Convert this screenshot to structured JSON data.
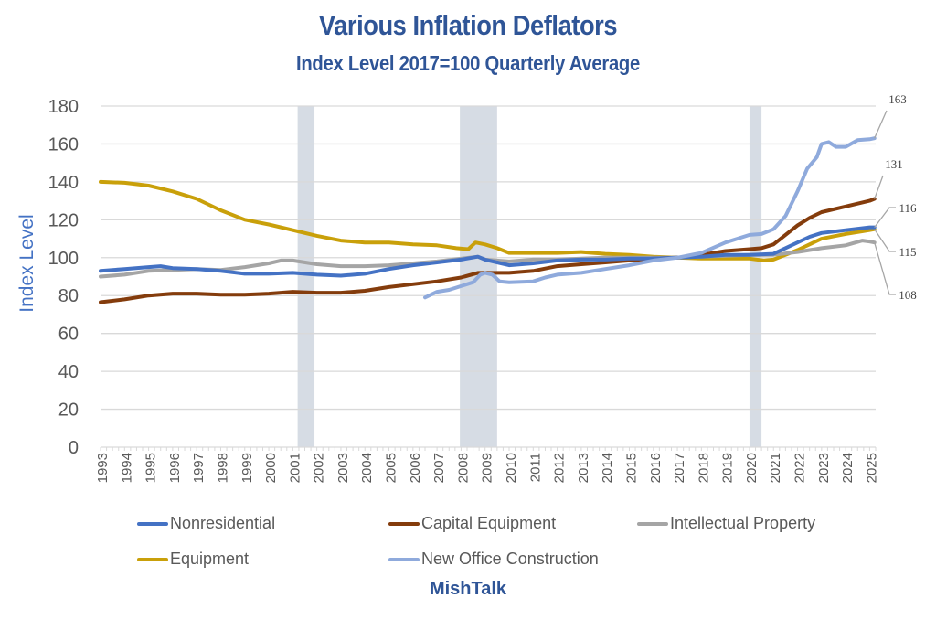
{
  "chart_data": {
    "type": "line",
    "title": "Various Inflation Deflators",
    "subtitle": "Index Level 2017=100 Quarterly Average",
    "xlabel": "",
    "ylabel": "Index Level",
    "ylim": [
      0,
      180
    ],
    "yticks": [
      "0",
      "20",
      "40",
      "60",
      "80",
      "100",
      "120",
      "140",
      "160",
      "180"
    ],
    "xlim": [
      1993,
      2025.25
    ],
    "xticks": [
      "1993",
      "1994",
      "1995",
      "1996",
      "1997",
      "1998",
      "1999",
      "2000",
      "2001",
      "2002",
      "2003",
      "2004",
      "2005",
      "2006",
      "2007",
      "2008",
      "2009",
      "2010",
      "2011",
      "2012",
      "2013",
      "2014",
      "2015",
      "2016",
      "2017",
      "2018",
      "2019",
      "2020",
      "2021",
      "2022",
      "2023",
      "2024",
      "2025"
    ],
    "grid": true,
    "legend_position": "bottom",
    "recessions": [
      [
        2001.2,
        2001.9
      ],
      [
        2007.95,
        2009.5
      ],
      [
        2020.0,
        2020.5
      ]
    ],
    "series": [
      {
        "name": "Nonresidential",
        "color": "#4472C4",
        "x": [
          1993,
          1994,
          1995,
          1995.5,
          1996,
          1997,
          1998,
          1999,
          2000,
          2001,
          2002,
          2003,
          2004,
          2005,
          2006,
          2007,
          2008,
          2008.7,
          2009,
          2009.5,
          2010,
          2011,
          2012,
          2013,
          2014,
          2015,
          2016,
          2017,
          2018,
          2019,
          2020,
          2021,
          2022,
          2022.5,
          2023,
          2024,
          2025,
          2025.2
        ],
        "values": [
          93,
          94,
          95,
          95.5,
          94.5,
          94,
          93,
          91.5,
          91.5,
          92,
          91,
          90.5,
          91.5,
          94,
          96,
          97.5,
          99,
          100.5,
          99,
          97.5,
          96,
          97,
          98.5,
          99,
          99,
          99.5,
          99.5,
          100,
          100.5,
          101.5,
          101.5,
          102,
          108,
          111,
          113,
          114.5,
          116,
          116
        ]
      },
      {
        "name": "Capital Equipment",
        "color": "#843C0C",
        "x": [
          1993,
          1994,
          1995,
          1996,
          1997,
          1998,
          1999,
          2000,
          2001,
          2002,
          2003,
          2004,
          2005,
          2006,
          2007,
          2008,
          2008.7,
          2009,
          2010,
          2011,
          2012,
          2013,
          2014,
          2015,
          2016,
          2017,
          2018,
          2019,
          2020,
          2020.5,
          2021,
          2022,
          2022.5,
          2023,
          2024,
          2025,
          2025.2
        ],
        "values": [
          76.5,
          78,
          80,
          81,
          81,
          80.5,
          80.5,
          81,
          82,
          81.5,
          81.5,
          82.5,
          84.5,
          86,
          87.5,
          89.5,
          92,
          92,
          92,
          93,
          95.5,
          96.5,
          97.5,
          98.5,
          99.5,
          100,
          101.5,
          103.5,
          104.5,
          105,
          107,
          117,
          121,
          124,
          127,
          130,
          131
        ]
      },
      {
        "name": "Intellectual Property",
        "color": "#A5A5A5",
        "x": [
          1993,
          1994,
          1995,
          1996,
          1997,
          1998,
          1999,
          2000,
          2000.5,
          2001,
          2002,
          2003,
          2004,
          2005,
          2006,
          2007,
          2008,
          2008.7,
          2009,
          2010,
          2011,
          2012,
          2013,
          2014,
          2015,
          2016,
          2017,
          2018,
          2019,
          2020,
          2021,
          2022,
          2023,
          2024,
          2024.7,
          2025,
          2025.2
        ],
        "values": [
          90,
          91,
          93,
          93.5,
          94,
          93.5,
          95,
          97,
          98.5,
          98.5,
          96.5,
          95.5,
          95.5,
          96,
          97,
          98,
          99.5,
          100.5,
          99,
          98,
          99,
          99,
          99.5,
          100,
          100,
          100,
          100,
          100.5,
          101,
          101.5,
          101.5,
          103,
          105,
          106.5,
          109,
          108.5,
          108
        ]
      },
      {
        "name": "Equipment",
        "color": "#C9A00A",
        "x": [
          1993,
          1994,
          1995,
          1996,
          1997,
          1998,
          1999,
          2000,
          2001,
          2002,
          2003,
          2004,
          2005,
          2006,
          2007,
          2007.8,
          2008.3,
          2008.6,
          2009,
          2009.5,
          2010,
          2011,
          2012,
          2013,
          2014,
          2015,
          2016,
          2017,
          2018,
          2019,
          2020,
          2020.6,
          2021,
          2022,
          2023,
          2024,
          2025,
          2025.2
        ],
        "values": [
          140,
          139.5,
          138,
          135,
          131,
          125,
          120,
          117.5,
          114.5,
          111.5,
          109,
          108,
          108,
          107,
          106.5,
          105,
          104.5,
          108,
          107,
          105,
          102.5,
          102.5,
          102.5,
          103,
          102,
          101.5,
          100.5,
          100,
          99.5,
          99.5,
          99.5,
          98.5,
          99,
          104,
          110,
          112.5,
          114.5,
          115
        ]
      },
      {
        "name": "New Office Construction",
        "color": "#8FAADC",
        "x": [
          2006.5,
          2007,
          2007.5,
          2008,
          2008.5,
          2008.8,
          2009,
          2009.3,
          2009.6,
          2010,
          2011,
          2011.5,
          2012,
          2013,
          2014,
          2015,
          2016,
          2017,
          2018,
          2019,
          2020,
          2020.5,
          2021,
          2021.5,
          2022,
          2022.4,
          2022.8,
          2023,
          2023.3,
          2023.6,
          2024,
          2024.5,
          2025,
          2025.2
        ],
        "values": [
          79,
          82,
          83,
          85,
          87,
          91,
          92,
          91,
          87.5,
          87,
          87.5,
          89.5,
          91,
          92,
          94,
          96,
          98.5,
          100,
          102.5,
          108,
          112,
          112.5,
          115,
          122,
          135,
          147,
          153,
          160,
          161,
          158.5,
          158.5,
          162,
          162.5,
          163
        ]
      }
    ],
    "annotations": [
      {
        "label": "163",
        "series": "New Office Construction"
      },
      {
        "label": "131",
        "series": "Capital Equipment"
      },
      {
        "label": "116",
        "series": "Nonresidential"
      },
      {
        "label": "115",
        "series": "Equipment"
      },
      {
        "label": "108",
        "series": "Intellectual Property"
      }
    ],
    "source": "MishTalk"
  }
}
